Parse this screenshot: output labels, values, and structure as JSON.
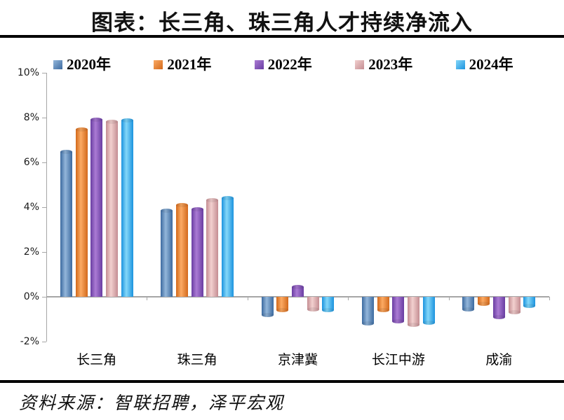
{
  "title": "图表：长三角、珠三角人才持续净流入",
  "source": "资料来源：智联招聘，泽平宏观",
  "colors": {
    "axis": "#a6a6a6",
    "title_rule": "#000000",
    "series": [
      {
        "name": "2020年",
        "dark": "#3c6aa0",
        "light": "#93b6da",
        "legend": "#6c92be"
      },
      {
        "name": "2021年",
        "dark": "#d3691b",
        "light": "#fbaa63",
        "legend": "#ee8b37"
      },
      {
        "name": "2022年",
        "dark": "#693da2",
        "light": "#ab7bd4",
        "legend": "#8a5cbe"
      },
      {
        "name": "2023年",
        "dark": "#c48d92",
        "light": "#f2d0cf",
        "legend": "#ddb3b4"
      },
      {
        "name": "2024年",
        "dark": "#1b93de",
        "light": "#84d7f9",
        "legend": "#46bef3"
      }
    ]
  },
  "chart_data": {
    "type": "bar",
    "title": "图表：长三角、珠三角人才持续净流入",
    "categories": [
      "长三角",
      "珠三角",
      "京津冀",
      "长江中游",
      "成渝"
    ],
    "series": [
      {
        "name": "2020年",
        "values": [
          6.45,
          3.85,
          -0.8,
          -1.2,
          -0.55
        ]
      },
      {
        "name": "2021年",
        "values": [
          7.45,
          4.1,
          -0.6,
          -0.6,
          -0.3
        ]
      },
      {
        "name": "2022年",
        "values": [
          7.9,
          3.9,
          0.45,
          -1.1,
          -0.9
        ]
      },
      {
        "name": "2023年",
        "values": [
          7.8,
          4.3,
          -0.55,
          -1.25,
          -0.7
        ]
      },
      {
        "name": "2024年",
        "values": [
          7.85,
          4.4,
          -0.6,
          -1.15,
          -0.4
        ]
      }
    ],
    "xlabel": "",
    "ylabel": "",
    "ylim": [
      -2,
      10
    ],
    "y_ticks": [
      {
        "label": "10%",
        "value": 10
      },
      {
        "label": "8%",
        "value": 8
      },
      {
        "label": "6%",
        "value": 6
      },
      {
        "label": "4%",
        "value": 4
      },
      {
        "label": "2%",
        "value": 2
      },
      {
        "label": "0%",
        "value": 0
      },
      {
        "label": "-2%",
        "value": -2
      }
    ],
    "grid": false,
    "legend_position": "top"
  }
}
